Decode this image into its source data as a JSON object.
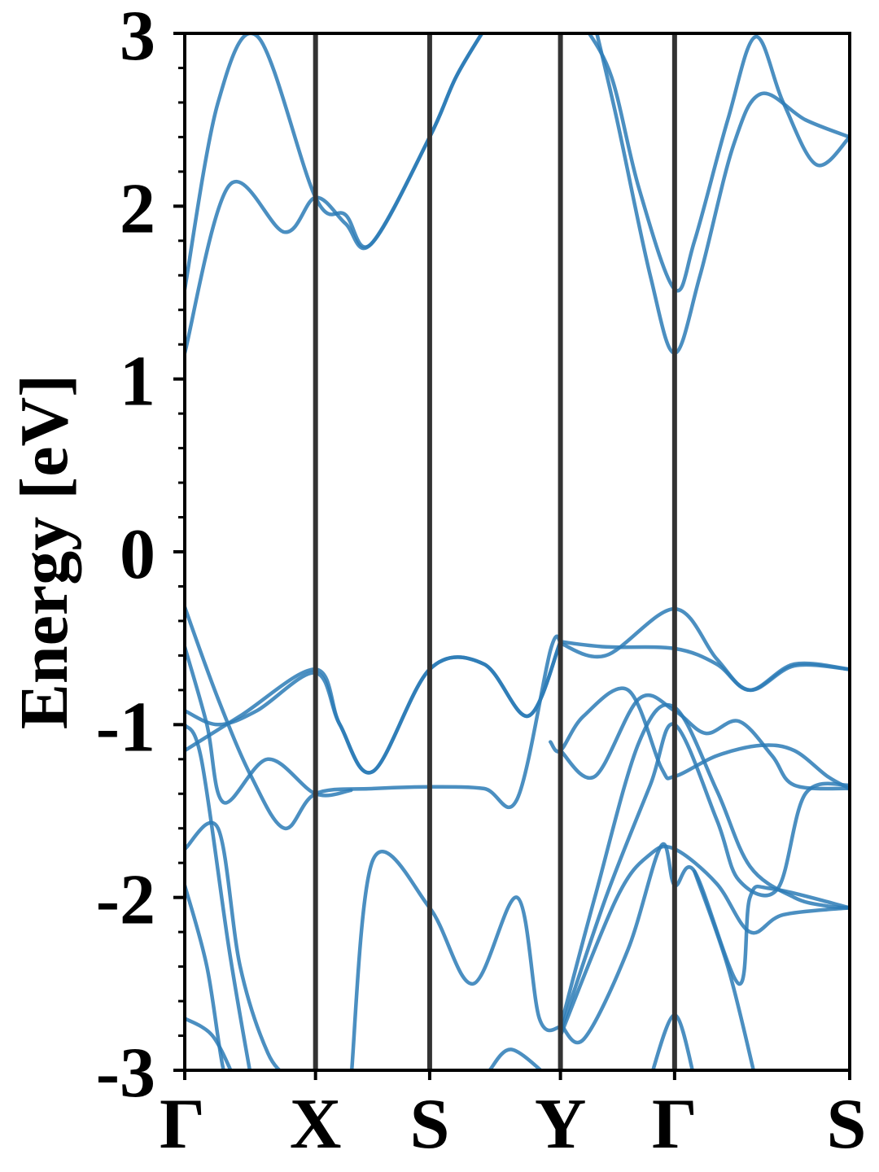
{
  "chart_data": {
    "type": "line",
    "title": "",
    "xlabel": "",
    "ylabel": "Energy [eV]",
    "ylim": [
      -3,
      3
    ],
    "xlim": [
      0,
      6.0
    ],
    "y_ticks": [
      "3",
      "2",
      "1",
      "0",
      "-1",
      "-2",
      "-3"
    ],
    "y_tick_values": [
      3,
      2,
      1,
      0,
      -1,
      -2,
      -3
    ],
    "k_points": [
      {
        "label": "Γ",
        "x": 0.0
      },
      {
        "label": "X",
        "x": 1.18
      },
      {
        "label": "S",
        "x": 2.21
      },
      {
        "label": "Y",
        "x": 3.39
      },
      {
        "label": "Γ",
        "x": 4.42
      },
      {
        "label": "S",
        "x": 6.0
      }
    ],
    "grid": false,
    "line_color": "#2c7bb6",
    "kline_color": "#333333",
    "series": [
      {
        "values": [
          [
            0,
            1.52
          ],
          [
            0.3,
            2.6
          ],
          [
            0.66,
            2.98
          ],
          [
            1.18,
            2.05
          ],
          [
            1.45,
            1.95
          ],
          [
            1.68,
            1.78
          ],
          [
            2.21,
            2.4
          ],
          [
            2.45,
            2.75
          ],
          [
            2.73,
            3.05
          ]
        ]
      },
      {
        "values": [
          [
            0,
            1.15
          ],
          [
            0.4,
            2.12
          ],
          [
            0.9,
            1.85
          ],
          [
            1.18,
            2.05
          ],
          [
            1.45,
            1.9
          ],
          [
            1.68,
            1.78
          ],
          [
            2.21,
            2.4
          ],
          [
            2.45,
            2.75
          ],
          [
            2.73,
            3.05
          ]
        ]
      },
      {
        "values": [
          [
            3.7,
            3.05
          ],
          [
            3.9,
            2.5
          ],
          [
            4.2,
            1.6
          ],
          [
            4.42,
            1.15
          ],
          [
            4.65,
            1.6
          ],
          [
            4.95,
            2.35
          ],
          [
            5.2,
            2.65
          ],
          [
            5.6,
            2.5
          ],
          [
            6.0,
            2.4
          ]
        ]
      },
      {
        "values": [
          [
            3.6,
            3.05
          ],
          [
            3.85,
            2.75
          ],
          [
            4.1,
            2.1
          ],
          [
            4.42,
            1.52
          ],
          [
            4.6,
            1.8
          ],
          [
            4.9,
            2.5
          ],
          [
            5.15,
            2.98
          ],
          [
            5.4,
            2.6
          ],
          [
            5.7,
            2.24
          ],
          [
            6.0,
            2.4
          ]
        ]
      },
      {
        "values": [
          [
            0,
            -0.32
          ],
          [
            0.3,
            -0.85
          ],
          [
            0.6,
            -1.3
          ],
          [
            0.9,
            -1.6
          ],
          [
            1.18,
            -1.4
          ],
          [
            1.7,
            -1.37
          ],
          [
            2.21,
            -1.36
          ],
          [
            2.7,
            -1.37
          ],
          [
            3.0,
            -1.43
          ],
          [
            3.3,
            -0.57
          ],
          [
            3.39,
            -0.52
          ]
        ]
      },
      {
        "values": [
          [
            0,
            -1.15
          ],
          [
            0.5,
            -0.95
          ],
          [
            1.18,
            -0.68
          ],
          [
            1.4,
            -1.0
          ],
          [
            1.7,
            -1.27
          ],
          [
            2.21,
            -0.68
          ],
          [
            2.7,
            -0.65
          ],
          [
            3.1,
            -0.95
          ],
          [
            3.39,
            -0.52
          ]
        ]
      },
      {
        "values": [
          [
            0,
            -0.92
          ],
          [
            0.3,
            -1.0
          ],
          [
            0.65,
            -0.92
          ],
          [
            1.18,
            -0.7
          ],
          [
            1.4,
            -1.0
          ],
          [
            1.7,
            -1.27
          ],
          [
            2.21,
            -0.68
          ],
          [
            2.7,
            -0.65
          ],
          [
            3.1,
            -0.95
          ],
          [
            3.39,
            -0.52
          ]
        ]
      },
      {
        "values": [
          [
            3.39,
            -0.52
          ],
          [
            3.8,
            -0.55
          ],
          [
            4.42,
            -0.56
          ],
          [
            4.8,
            -0.65
          ],
          [
            5.1,
            -0.8
          ],
          [
            5.5,
            -0.65
          ],
          [
            6.0,
            -0.68
          ]
        ]
      },
      {
        "values": [
          [
            3.39,
            -0.53
          ],
          [
            3.8,
            -0.6
          ],
          [
            4.42,
            -0.33
          ],
          [
            4.8,
            -0.62
          ],
          [
            5.1,
            -0.8
          ],
          [
            5.5,
            -0.66
          ],
          [
            6.0,
            -0.68
          ]
        ]
      },
      {
        "values": [
          [
            0,
            -0.55
          ],
          [
            0.2,
            -1.0
          ],
          [
            0.35,
            -1.45
          ],
          [
            0.75,
            -1.2
          ],
          [
            1.18,
            -1.4
          ],
          [
            1.5,
            -1.38
          ]
        ]
      },
      {
        "values": [
          [
            3.39,
            -1.15
          ],
          [
            3.7,
            -1.3
          ],
          [
            4.1,
            -0.85
          ],
          [
            4.42,
            -0.92
          ],
          [
            4.7,
            -1.05
          ],
          [
            5.0,
            -0.98
          ],
          [
            5.3,
            -1.18
          ],
          [
            5.5,
            -1.35
          ],
          [
            6.0,
            -1.37
          ]
        ]
      },
      {
        "values": [
          [
            3.3,
            -1.1
          ],
          [
            3.39,
            -1.15
          ],
          [
            3.6,
            -0.95
          ],
          [
            4.0,
            -0.8
          ],
          [
            4.3,
            -1.25
          ],
          [
            4.42,
            -1.3
          ],
          [
            4.8,
            -1.18
          ],
          [
            5.2,
            -1.12
          ],
          [
            5.5,
            -1.15
          ],
          [
            5.8,
            -1.3
          ],
          [
            6.0,
            -1.37
          ]
        ]
      },
      {
        "values": [
          [
            0,
            -1.72
          ],
          [
            0.3,
            -1.6
          ],
          [
            0.5,
            -2.4
          ],
          [
            0.75,
            -2.9
          ],
          [
            0.95,
            -3.05
          ]
        ]
      },
      {
        "values": [
          [
            0,
            -1.0
          ],
          [
            0.15,
            -1.2
          ],
          [
            0.4,
            -2.3
          ],
          [
            0.6,
            -3.05
          ]
        ]
      },
      {
        "values": [
          [
            0,
            -1.93
          ],
          [
            0.2,
            -2.4
          ],
          [
            0.35,
            -3.0
          ],
          [
            0.45,
            -3.05
          ]
        ]
      },
      {
        "values": [
          [
            0,
            -2.7
          ],
          [
            0.25,
            -2.8
          ],
          [
            0.45,
            -3.05
          ]
        ]
      },
      {
        "values": [
          [
            1.5,
            -3.05
          ],
          [
            1.7,
            -1.78
          ],
          [
            2.21,
            -2.06
          ],
          [
            2.6,
            -2.5
          ],
          [
            3.0,
            -2.0
          ],
          [
            3.2,
            -2.7
          ],
          [
            3.39,
            -2.75
          ]
        ]
      },
      {
        "values": [
          [
            2.75,
            -3.0
          ],
          [
            2.95,
            -2.88
          ],
          [
            3.3,
            -3.05
          ]
        ]
      },
      {
        "values": [
          [
            3.39,
            -2.75
          ],
          [
            3.7,
            -2.0
          ],
          [
            4.1,
            -1.1
          ],
          [
            4.42,
            -0.9
          ],
          [
            4.8,
            -1.38
          ],
          [
            5.1,
            -1.82
          ],
          [
            5.5,
            -2.0
          ],
          [
            5.8,
            -2.05
          ],
          [
            6.0,
            -2.06
          ]
        ]
      },
      {
        "values": [
          [
            3.39,
            -2.78
          ],
          [
            3.8,
            -2.0
          ],
          [
            4.2,
            -1.35
          ],
          [
            4.42,
            -1.0
          ],
          [
            4.8,
            -1.55
          ],
          [
            5.0,
            -1.9
          ],
          [
            5.35,
            -1.95
          ],
          [
            5.6,
            -1.4
          ],
          [
            6.0,
            -1.35
          ]
        ]
      },
      {
        "values": [
          [
            3.39,
            -2.8
          ],
          [
            3.9,
            -2.0
          ],
          [
            4.2,
            -1.75
          ],
          [
            4.42,
            -1.72
          ],
          [
            4.8,
            -1.92
          ],
          [
            5.1,
            -2.2
          ],
          [
            5.4,
            -2.1
          ],
          [
            6.0,
            -2.06
          ]
        ]
      },
      {
        "values": [
          [
            3.39,
            -2.73
          ],
          [
            3.6,
            -2.82
          ],
          [
            4.0,
            -2.3
          ],
          [
            4.3,
            -1.7
          ],
          [
            4.42,
            -1.93
          ],
          [
            4.6,
            -1.85
          ],
          [
            5.0,
            -2.5
          ],
          [
            5.1,
            -2.0
          ],
          [
            5.3,
            -1.95
          ],
          [
            6.0,
            -2.06
          ]
        ]
      },
      {
        "values": [
          [
            4.2,
            -3.05
          ],
          [
            4.42,
            -2.68
          ],
          [
            4.6,
            -3.05
          ]
        ]
      },
      {
        "values": [
          [
            4.6,
            -1.85
          ],
          [
            4.9,
            -2.4
          ],
          [
            5.15,
            -3.05
          ]
        ]
      }
    ]
  }
}
